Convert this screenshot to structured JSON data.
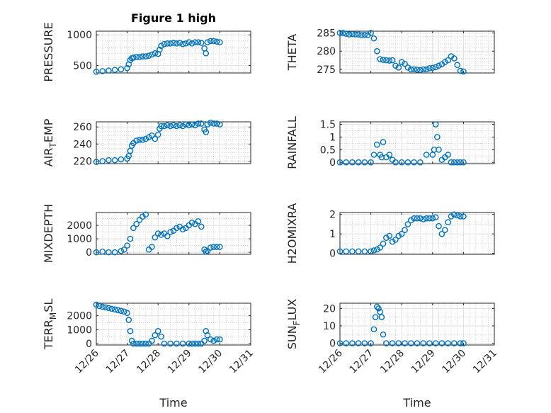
{
  "figure": {
    "title": "Figure 1 high",
    "marker_color": "#0072bd",
    "grid": "major and minor, dotted",
    "x_tick_labels": [
      "12/26",
      "12/27",
      "12/28",
      "12/29",
      "12/30",
      "12/31"
    ],
    "x_label": "Time"
  },
  "chart_data": [
    {
      "type": "scatter",
      "panel": "top-left",
      "title": "Figure 1 high",
      "ylabel": "PRESSURE",
      "xlabel": "",
      "xlim": [
        0,
        5
      ],
      "ylim": [
        380,
        1060
      ],
      "yticks": [
        500,
        1000
      ],
      "ytick_labels": [
        "500",
        "1000"
      ],
      "minor_y": [
        400,
        600,
        700,
        800,
        900
      ],
      "x": [
        0.0,
        0.2,
        0.4,
        0.6,
        0.8,
        1.0,
        1.05,
        1.1,
        1.15,
        1.2,
        1.3,
        1.4,
        1.5,
        1.6,
        1.7,
        1.8,
        1.9,
        2.0,
        2.05,
        2.1,
        2.2,
        2.3,
        2.4,
        2.5,
        2.6,
        2.7,
        2.8,
        2.9,
        3.0,
        3.1,
        3.2,
        3.3,
        3.4,
        3.5,
        3.55,
        3.6,
        3.7,
        3.8,
        3.9,
        4.0
      ],
      "y": [
        400,
        410,
        420,
        430,
        440,
        460,
        520,
        590,
        620,
        630,
        640,
        640,
        650,
        650,
        660,
        680,
        700,
        690,
        760,
        820,
        850,
        860,
        860,
        870,
        860,
        870,
        850,
        860,
        880,
        860,
        880,
        880,
        870,
        780,
        700,
        880,
        900,
        900,
        890,
        880
      ]
    },
    {
      "type": "scatter",
      "panel": "top-right",
      "ylabel": "THETA",
      "xlabel": "",
      "xlim": [
        0,
        5
      ],
      "ylim": [
        274,
        285.5
      ],
      "yticks": [
        275,
        280,
        285
      ],
      "ytick_labels": [
        "275",
        "280",
        "285"
      ],
      "minor_y": [
        276,
        277,
        278,
        279,
        281,
        282,
        283,
        284
      ],
      "x": [
        0.0,
        0.1,
        0.2,
        0.3,
        0.4,
        0.5,
        0.6,
        0.7,
        0.8,
        0.9,
        1.0,
        1.1,
        1.2,
        1.3,
        1.4,
        1.5,
        1.6,
        1.7,
        1.8,
        1.9,
        2.0,
        2.1,
        2.2,
        2.3,
        2.4,
        2.5,
        2.6,
        2.7,
        2.8,
        2.9,
        3.0,
        3.1,
        3.2,
        3.3,
        3.4,
        3.5,
        3.6,
        3.7,
        3.8,
        3.9,
        4.0
      ],
      "y": [
        285,
        285,
        284.8,
        284.6,
        284.7,
        284.6,
        284.6,
        284.4,
        284.5,
        284.4,
        285,
        283.5,
        280,
        277.8,
        277.6,
        277.5,
        277.4,
        277.5,
        276,
        275.5,
        277,
        276.5,
        275.5,
        275,
        275,
        274.9,
        274.8,
        275,
        275,
        275.3,
        275.4,
        275.6,
        276,
        276.4,
        277,
        277.5,
        278.6,
        278,
        276.2,
        274.6,
        274.4
      ]
    },
    {
      "type": "scatter",
      "panel": "row2-left",
      "ylabel": "AIR_TEMP",
      "xlabel": "",
      "xlim": [
        0,
        5
      ],
      "ylim": [
        217,
        266
      ],
      "yticks": [
        220,
        240,
        260
      ],
      "ytick_labels": [
        "220",
        "240",
        "260"
      ],
      "minor_y": [
        225,
        230,
        235,
        245,
        250,
        255
      ],
      "x": [
        0.0,
        0.2,
        0.4,
        0.6,
        0.8,
        1.0,
        1.05,
        1.1,
        1.15,
        1.2,
        1.3,
        1.4,
        1.5,
        1.6,
        1.7,
        1.8,
        1.9,
        2.0,
        2.05,
        2.1,
        2.2,
        2.3,
        2.4,
        2.5,
        2.6,
        2.7,
        2.8,
        2.9,
        3.0,
        3.1,
        3.2,
        3.3,
        3.4,
        3.5,
        3.55,
        3.6,
        3.7,
        3.8,
        3.9,
        4.0
      ],
      "y": [
        219,
        220,
        221,
        221,
        222,
        223,
        226,
        232,
        238,
        241,
        244,
        245,
        245,
        246,
        248,
        250,
        246,
        251,
        258,
        261,
        261,
        262,
        261,
        262,
        261,
        262,
        261,
        263,
        262,
        263,
        262,
        264,
        264,
        257,
        254,
        263,
        265,
        264,
        264,
        263
      ]
    },
    {
      "type": "scatter",
      "panel": "row2-right",
      "ylabel": "RAINFALL",
      "xlabel": "",
      "xlim": [
        0,
        5
      ],
      "ylim": [
        -0.05,
        1.6
      ],
      "yticks": [
        0,
        0.5,
        1,
        1.5
      ],
      "ytick_labels": [
        "0",
        "0.5",
        "1",
        "1.5"
      ],
      "minor_y": [
        0.25,
        0.75,
        1.25
      ],
      "x": [
        0.0,
        0.2,
        0.4,
        0.6,
        0.8,
        1.0,
        1.1,
        1.2,
        1.3,
        1.35,
        1.4,
        1.5,
        1.6,
        1.7,
        1.8,
        2.0,
        2.2,
        2.4,
        2.6,
        2.8,
        3.0,
        3.05,
        3.1,
        3.15,
        3.2,
        3.3,
        3.4,
        3.5,
        3.6,
        3.7,
        3.8,
        3.9,
        4.0
      ],
      "y": [
        0,
        0,
        0,
        0,
        0,
        0,
        0.3,
        0.7,
        0.3,
        0.2,
        0.8,
        0.2,
        0.3,
        0.1,
        0,
        0,
        0,
        0,
        0,
        0.3,
        0.3,
        0.5,
        1.5,
        1.0,
        0.5,
        0.1,
        0.2,
        0.3,
        0,
        0,
        0,
        0,
        0
      ]
    },
    {
      "type": "scatter",
      "panel": "row3-left",
      "ylabel": "MIXDEPTH",
      "xlabel": "",
      "xlim": [
        0,
        5
      ],
      "ylim": [
        -150,
        2950
      ],
      "yticks": [
        0,
        1000,
        2000
      ],
      "ytick_labels": [
        "0",
        "1000",
        "2000"
      ],
      "minor_y": [
        500,
        1500,
        2500
      ],
      "x": [
        0.0,
        0.2,
        0.4,
        0.6,
        0.8,
        0.9,
        1.0,
        1.1,
        1.2,
        1.3,
        1.4,
        1.5,
        1.6,
        1.7,
        1.8,
        1.9,
        2.0,
        2.1,
        2.2,
        2.3,
        2.4,
        2.5,
        2.6,
        2.7,
        2.8,
        2.9,
        3.0,
        3.1,
        3.2,
        3.3,
        3.4,
        3.5,
        3.55,
        3.6,
        3.7,
        3.8,
        3.9,
        4.0
      ],
      "y": [
        0,
        50,
        0,
        0,
        100,
        200,
        500,
        1000,
        1800,
        2100,
        2400,
        2650,
        2800,
        200,
        400,
        1100,
        1400,
        1300,
        1400,
        1200,
        1500,
        1600,
        1800,
        1900,
        1700,
        1800,
        2000,
        2200,
        2100,
        2300,
        1900,
        200,
        50,
        100,
        350,
        400,
        400,
        400
      ]
    },
    {
      "type": "scatter",
      "panel": "row3-right",
      "ylabel": "H2OMIXRA",
      "xlabel": "",
      "xlim": [
        0,
        5
      ],
      "ylim": [
        -0.05,
        2.1
      ],
      "yticks": [
        0,
        1,
        2
      ],
      "ytick_labels": [
        "0",
        "1",
        "2"
      ],
      "minor_y": [
        0.5,
        1.5
      ],
      "x": [
        0.0,
        0.2,
        0.4,
        0.6,
        0.8,
        1.0,
        1.1,
        1.2,
        1.3,
        1.4,
        1.5,
        1.6,
        1.7,
        1.8,
        1.9,
        2.0,
        2.1,
        2.2,
        2.3,
        2.4,
        2.5,
        2.6,
        2.7,
        2.8,
        2.9,
        3.0,
        3.1,
        3.2,
        3.3,
        3.4,
        3.5,
        3.6,
        3.7,
        3.8,
        3.9,
        4.0
      ],
      "y": [
        0.1,
        0.1,
        0.1,
        0.1,
        0.1,
        0.1,
        0.15,
        0.2,
        0.3,
        0.5,
        0.8,
        0.9,
        0.6,
        0.7,
        0.9,
        1.0,
        1.2,
        1.5,
        1.7,
        1.8,
        1.8,
        1.8,
        1.75,
        1.8,
        1.8,
        1.8,
        1.85,
        1.4,
        1.0,
        1.2,
        1.6,
        1.9,
        2.0,
        1.95,
        1.9,
        1.9
      ]
    },
    {
      "type": "scatter",
      "panel": "bottom-left",
      "ylabel": "TERR_MSL",
      "xlabel": "Time",
      "xlim": [
        0,
        5
      ],
      "ylim": [
        -100,
        2900
      ],
      "yticks": [
        0,
        1000,
        2000
      ],
      "ytick_labels": [
        "0",
        "1000",
        "2000"
      ],
      "minor_y": [
        500,
        1500,
        2500
      ],
      "x": [
        0.0,
        0.1,
        0.2,
        0.3,
        0.4,
        0.5,
        0.6,
        0.7,
        0.8,
        0.9,
        1.0,
        1.05,
        1.1,
        1.15,
        1.2,
        1.3,
        1.4,
        1.5,
        1.6,
        1.7,
        1.8,
        1.9,
        2.0,
        2.1,
        2.2,
        2.4,
        2.6,
        2.8,
        3.0,
        3.1,
        3.2,
        3.3,
        3.4,
        3.5,
        3.55,
        3.6,
        3.7,
        3.8,
        3.9,
        4.0
      ],
      "y": [
        2800,
        2700,
        2650,
        2600,
        2550,
        2500,
        2450,
        2400,
        2350,
        2300,
        2200,
        1700,
        900,
        200,
        0,
        0,
        0,
        0,
        0,
        0,
        200,
        600,
        900,
        500,
        0,
        0,
        0,
        0,
        0,
        0,
        0,
        0,
        0,
        200,
        900,
        600,
        300,
        200,
        300,
        300
      ]
    },
    {
      "type": "scatter",
      "panel": "bottom-right",
      "ylabel": "SUN_FLUX",
      "xlabel": "Time",
      "xlim": [
        0,
        5
      ],
      "ylim": [
        -1,
        23
      ],
      "yticks": [
        0,
        10,
        20
      ],
      "ytick_labels": [
        "0",
        "10",
        "20"
      ],
      "minor_y": [
        5,
        15
      ],
      "x": [
        0.0,
        0.2,
        0.4,
        0.6,
        0.8,
        1.0,
        1.1,
        1.15,
        1.2,
        1.25,
        1.3,
        1.35,
        1.4,
        1.5,
        1.7,
        1.9,
        2.1,
        2.3,
        2.5,
        2.7,
        2.9,
        3.1,
        3.3,
        3.5,
        3.7,
        3.9,
        4.0
      ],
      "y": [
        0,
        0,
        0,
        0,
        0,
        0,
        8,
        15,
        21,
        20,
        18,
        15,
        5,
        0,
        0,
        0,
        0,
        0,
        0,
        0,
        0,
        0,
        0,
        0,
        0,
        0,
        0
      ]
    }
  ]
}
